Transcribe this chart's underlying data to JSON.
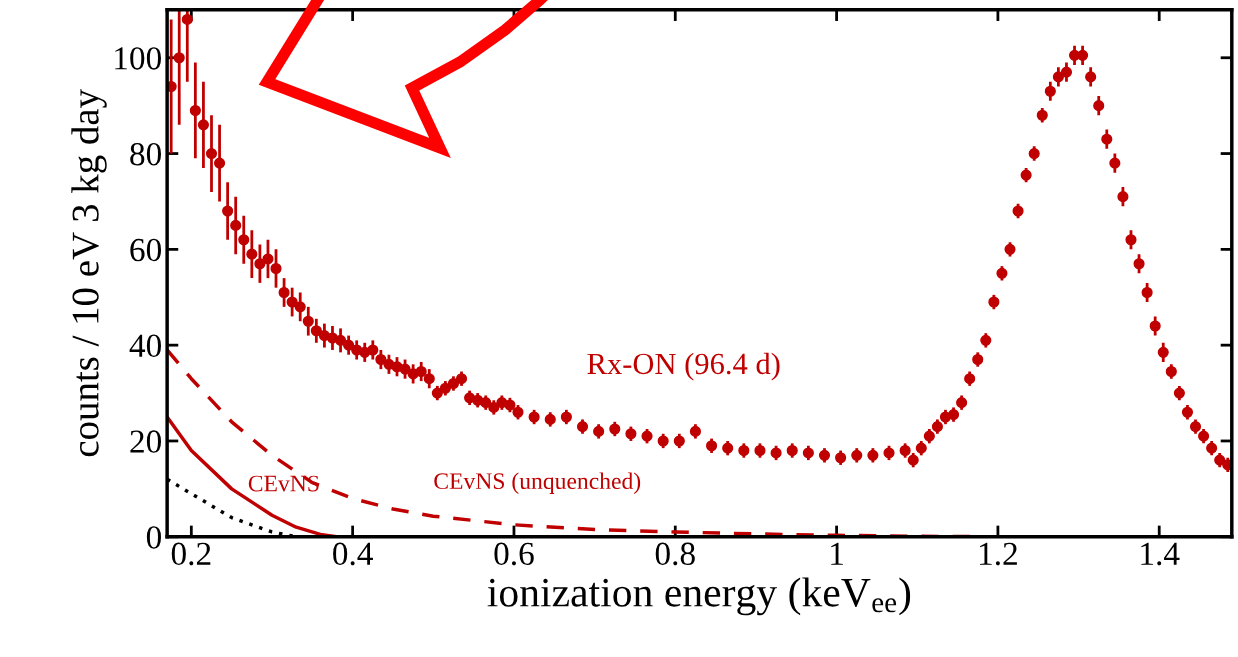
{
  "chart_data": {
    "type": "scatter",
    "xlabel": "ionization energy (keV$_{ee}$)",
    "ylabel": "counts / 10 eV 3 kg day",
    "xlim": [
      0.17,
      1.49
    ],
    "ylim": [
      0,
      110
    ],
    "xticks": [
      0.2,
      0.4,
      0.6,
      0.8,
      1,
      1.2,
      1.4
    ],
    "yticks": [
      0,
      20,
      40,
      60,
      80,
      100
    ],
    "grid": false,
    "legend": false,
    "series": [
      {
        "name": "Rx-ON (96.4 d)",
        "marker": "circle",
        "color": "#c00000",
        "x": [
          0.175,
          0.185,
          0.195,
          0.205,
          0.215,
          0.225,
          0.235,
          0.245,
          0.255,
          0.265,
          0.275,
          0.285,
          0.295,
          0.305,
          0.315,
          0.325,
          0.335,
          0.345,
          0.355,
          0.365,
          0.375,
          0.385,
          0.395,
          0.405,
          0.415,
          0.425,
          0.435,
          0.445,
          0.455,
          0.465,
          0.475,
          0.485,
          0.495,
          0.505,
          0.515,
          0.525,
          0.535,
          0.545,
          0.555,
          0.565,
          0.575,
          0.585,
          0.595,
          0.605,
          0.625,
          0.645,
          0.665,
          0.685,
          0.705,
          0.725,
          0.745,
          0.765,
          0.785,
          0.805,
          0.825,
          0.845,
          0.865,
          0.885,
          0.905,
          0.925,
          0.945,
          0.965,
          0.985,
          1.005,
          1.025,
          1.045,
          1.065,
          1.085,
          1.095,
          1.105,
          1.115,
          1.125,
          1.135,
          1.145,
          1.155,
          1.165,
          1.175,
          1.185,
          1.195,
          1.205,
          1.215,
          1.225,
          1.235,
          1.245,
          1.255,
          1.265,
          1.275,
          1.285,
          1.295,
          1.305,
          1.315,
          1.325,
          1.335,
          1.345,
          1.355,
          1.365,
          1.375,
          1.385,
          1.395,
          1.405,
          1.415,
          1.425,
          1.435,
          1.445,
          1.455,
          1.465,
          1.475,
          1.485
        ],
        "values": [
          94,
          100,
          108,
          89,
          86,
          80,
          78,
          68,
          65,
          62,
          59,
          57,
          58,
          56,
          51,
          49,
          48,
          45,
          43,
          42,
          41.5,
          41,
          40,
          39,
          38.5,
          39,
          37,
          36,
          35.5,
          35,
          34,
          34.5,
          33,
          30,
          31,
          32,
          33,
          29,
          28.5,
          28,
          27,
          28,
          27.5,
          26,
          25,
          24.5,
          25,
          23,
          22,
          22.5,
          21.5,
          21,
          20,
          20,
          22,
          19,
          18.5,
          18,
          18,
          17.5,
          18,
          17.5,
          17,
          16.5,
          17,
          17,
          17.5,
          18,
          16,
          18.5,
          21,
          23,
          25,
          25.5,
          28,
          33,
          37,
          41,
          49,
          55,
          60,
          68,
          75.5,
          80,
          88,
          93,
          96,
          97,
          100.5,
          100.5,
          96,
          90,
          83,
          78,
          71,
          62,
          57,
          51,
          44,
          38.5,
          34.5,
          30,
          26,
          23,
          21,
          18.5,
          16,
          15
        ],
        "errors": [
          14,
          [
            86,
            110
          ],
          [
            95,
            110
          ],
          10,
          9,
          8,
          8,
          6,
          6,
          5,
          5,
          4,
          4,
          4,
          3,
          3,
          3,
          3,
          2.5,
          2.5,
          2.5,
          2.5,
          2,
          2,
          2,
          2,
          2,
          2,
          2,
          2,
          2,
          2,
          2,
          1.5,
          1.5,
          1.5,
          1.5,
          1.5,
          1.5,
          1.5,
          1.5,
          1.5,
          1.5,
          1.5,
          1.5,
          1.5,
          1.5,
          1.5,
          1.5,
          1.5,
          1.5,
          1.5,
          1.5,
          1.5,
          1.5,
          1.5,
          1.5,
          1.5,
          1.5,
          1.5,
          1.5,
          1.5,
          1.5,
          1.5,
          1.5,
          1.5,
          1.5,
          1.5,
          1.5,
          1.5,
          1.5,
          1.5,
          1.5,
          1.5,
          1.5,
          1.5,
          1.5,
          1.5,
          1.5,
          1.5,
          1.5,
          1.5,
          1.5,
          1.5,
          1.5,
          2,
          2,
          2,
          2,
          2,
          2,
          2,
          2,
          2,
          2,
          2,
          2,
          2,
          2,
          2,
          1.5,
          1.5,
          1.5,
          1.5,
          1.5,
          1.5,
          1.5,
          1.5
        ]
      },
      {
        "name": "CEvNS (unquenched)",
        "type": "line",
        "line_style": "dashed",
        "color": "#c00000",
        "x": [
          0.17,
          0.2,
          0.25,
          0.3,
          0.35,
          0.4,
          0.45,
          0.5,
          0.6,
          0.7,
          0.8,
          0.9,
          1.0,
          1.1,
          1.2,
          1.49
        ],
        "values": [
          39,
          33,
          24,
          17,
          11.3,
          8,
          5.8,
          4.3,
          2.5,
          1.5,
          1,
          0.6,
          0.3,
          0.1,
          0,
          0
        ]
      },
      {
        "name": "CEvNS",
        "type": "line",
        "line_style": "solid",
        "color": "#c00000",
        "x": [
          0.17,
          0.2,
          0.25,
          0.3,
          0.33,
          0.36,
          0.38
        ],
        "values": [
          25,
          18,
          10,
          4.5,
          2,
          0.5,
          0
        ]
      },
      {
        "type": "line",
        "line_style": "dotted",
        "color": "#000000",
        "x": [
          0.17,
          0.2,
          0.25,
          0.3,
          0.33
        ],
        "values": [
          12,
          9,
          4,
          1,
          0
        ]
      }
    ]
  }
}
